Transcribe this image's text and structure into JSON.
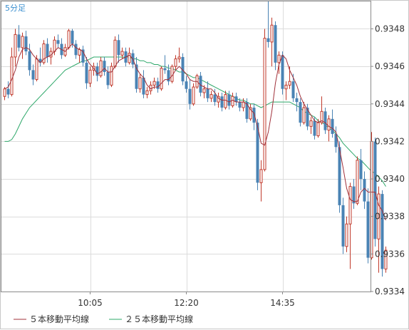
{
  "chart_data": {
    "type": "candlestick",
    "period_label": "5分足",
    "ylim": [
      0.9334,
      0.93495
    ],
    "y_ticks": [
      "0.9334",
      "0.9336",
      "0.9338",
      "0.9340",
      "0.9342",
      "0.9344",
      "0.9346",
      "0.9348"
    ],
    "x_ticks": [
      {
        "index": 24,
        "label": "10:05"
      },
      {
        "index": 51,
        "label": "12:20"
      },
      {
        "index": 78,
        "label": "14:35"
      }
    ],
    "colors": {
      "up": "#c0392b",
      "down": "#4a83b4",
      "ma5": "#a0303a",
      "ma25": "#2ea86a",
      "grid": "#dcdcdc",
      "frame": "#8a8a8a"
    },
    "legend": [
      {
        "name": "５本移動平均線",
        "color": "#a0303a"
      },
      {
        "name": "２５本移動平均線",
        "color": "#2ea86a"
      }
    ],
    "candles": [
      [
        0.93444,
        0.93449,
        0.93442,
        0.93448
      ],
      [
        0.93448,
        0.93452,
        0.93443,
        0.93445
      ],
      [
        0.93445,
        0.9347,
        0.93444,
        0.93465
      ],
      [
        0.93465,
        0.9348,
        0.9346,
        0.93477
      ],
      [
        0.93477,
        0.93482,
        0.93468,
        0.9347
      ],
      [
        0.9347,
        0.93478,
        0.93464,
        0.93476
      ],
      [
        0.93476,
        0.93479,
        0.93466,
        0.93468
      ],
      [
        0.93468,
        0.93472,
        0.93455,
        0.93458
      ],
      [
        0.93458,
        0.93461,
        0.9345,
        0.93453
      ],
      [
        0.93453,
        0.93466,
        0.93452,
        0.93464
      ],
      [
        0.93464,
        0.9347,
        0.9346,
        0.93462
      ],
      [
        0.93462,
        0.93474,
        0.93461,
        0.93472
      ],
      [
        0.93472,
        0.93475,
        0.93462,
        0.93465
      ],
      [
        0.93465,
        0.9347,
        0.93461,
        0.93468
      ],
      [
        0.93468,
        0.93476,
        0.93466,
        0.93474
      ],
      [
        0.93474,
        0.93477,
        0.9347,
        0.93472
      ],
      [
        0.93472,
        0.93475,
        0.93464,
        0.93466
      ],
      [
        0.93466,
        0.93472,
        0.93465,
        0.9347
      ],
      [
        0.9347,
        0.9348,
        0.93469,
        0.93479
      ],
      [
        0.93479,
        0.9348,
        0.9347,
        0.93472
      ],
      [
        0.93472,
        0.93474,
        0.93464,
        0.93466
      ],
      [
        0.93466,
        0.9347,
        0.93462,
        0.93469
      ],
      [
        0.93469,
        0.93471,
        0.9346,
        0.93462
      ],
      [
        0.93462,
        0.93465,
        0.93448,
        0.93451
      ],
      [
        0.93451,
        0.9346,
        0.93449,
        0.93458
      ],
      [
        0.93458,
        0.93462,
        0.93455,
        0.9346
      ],
      [
        0.9346,
        0.93462,
        0.93452,
        0.93455
      ],
      [
        0.93455,
        0.93465,
        0.93454,
        0.93463
      ],
      [
        0.93463,
        0.93465,
        0.93455,
        0.93457
      ],
      [
        0.93457,
        0.9346,
        0.93448,
        0.9345
      ],
      [
        0.9345,
        0.93462,
        0.93449,
        0.9346
      ],
      [
        0.9346,
        0.93476,
        0.93459,
        0.93474
      ],
      [
        0.93474,
        0.93477,
        0.93462,
        0.93466
      ],
      [
        0.93466,
        0.9347,
        0.93464,
        0.93468
      ],
      [
        0.93468,
        0.9347,
        0.9346,
        0.93462
      ],
      [
        0.93462,
        0.9347,
        0.93461,
        0.93467
      ],
      [
        0.93467,
        0.93469,
        0.93459,
        0.93461
      ],
      [
        0.93461,
        0.93465,
        0.93446,
        0.93448
      ],
      [
        0.93448,
        0.93456,
        0.93446,
        0.93454
      ],
      [
        0.93454,
        0.93458,
        0.93443,
        0.93445
      ],
      [
        0.93445,
        0.93449,
        0.93443,
        0.93447
      ],
      [
        0.93447,
        0.93452,
        0.93445,
        0.9345
      ],
      [
        0.9345,
        0.93454,
        0.93448,
        0.93452
      ],
      [
        0.93452,
        0.93454,
        0.93446,
        0.93448
      ],
      [
        0.93448,
        0.9346,
        0.93447,
        0.93459
      ],
      [
        0.93459,
        0.93466,
        0.93456,
        0.93458
      ],
      [
        0.93458,
        0.93461,
        0.9345,
        0.93452
      ],
      [
        0.93452,
        0.93461,
        0.93451,
        0.9346
      ],
      [
        0.9346,
        0.93466,
        0.93458,
        0.93464
      ],
      [
        0.93464,
        0.9347,
        0.93462,
        0.93465
      ],
      [
        0.93465,
        0.93467,
        0.9345,
        0.93452
      ],
      [
        0.93452,
        0.93455,
        0.93446,
        0.93448
      ],
      [
        0.93448,
        0.93453,
        0.93437,
        0.9344
      ],
      [
        0.9344,
        0.93451,
        0.93439,
        0.93449
      ],
      [
        0.93449,
        0.93456,
        0.93448,
        0.93455
      ],
      [
        0.93455,
        0.93457,
        0.93444,
        0.93446
      ],
      [
        0.93446,
        0.9345,
        0.93443,
        0.93448
      ],
      [
        0.93448,
        0.93452,
        0.93441,
        0.93443
      ],
      [
        0.93443,
        0.93447,
        0.93441,
        0.93445
      ],
      [
        0.93445,
        0.93448,
        0.93439,
        0.93441
      ],
      [
        0.93441,
        0.93446,
        0.93438,
        0.93444
      ],
      [
        0.93444,
        0.93446,
        0.93436,
        0.93438
      ],
      [
        0.93438,
        0.93447,
        0.93437,
        0.93445
      ],
      [
        0.93445,
        0.93447,
        0.93437,
        0.93439
      ],
      [
        0.93439,
        0.93446,
        0.93438,
        0.93444
      ],
      [
        0.93444,
        0.93446,
        0.93439,
        0.93441
      ],
      [
        0.93441,
        0.93443,
        0.93436,
        0.93438
      ],
      [
        0.93438,
        0.93443,
        0.93436,
        0.93441
      ],
      [
        0.93441,
        0.93443,
        0.9343,
        0.93432
      ],
      [
        0.93432,
        0.9344,
        0.93431,
        0.93438
      ],
      [
        0.93438,
        0.9344,
        0.93426,
        0.9343
      ],
      [
        0.9343,
        0.93432,
        0.93394,
        0.93398
      ],
      [
        0.93398,
        0.9341,
        0.93388,
        0.93405
      ],
      [
        0.93405,
        0.9348,
        0.93404,
        0.93475
      ],
      [
        0.93475,
        0.93495,
        0.9347,
        0.93473
      ],
      [
        0.93473,
        0.93486,
        0.9346,
        0.93482
      ],
      [
        0.93482,
        0.93484,
        0.93458,
        0.93462
      ],
      [
        0.93462,
        0.93468,
        0.93456,
        0.93466
      ],
      [
        0.93466,
        0.93468,
        0.93445,
        0.93448
      ],
      [
        0.93448,
        0.93452,
        0.93442,
        0.9345
      ],
      [
        0.9345,
        0.9346,
        0.93448,
        0.93452
      ],
      [
        0.93452,
        0.93456,
        0.93441,
        0.93443
      ],
      [
        0.93443,
        0.93446,
        0.93436,
        0.93441
      ],
      [
        0.93441,
        0.93443,
        0.93428,
        0.9343
      ],
      [
        0.9343,
        0.93441,
        0.93429,
        0.93438
      ],
      [
        0.93438,
        0.9344,
        0.93426,
        0.93428
      ],
      [
        0.93428,
        0.93433,
        0.93424,
        0.93431
      ],
      [
        0.93431,
        0.93433,
        0.93421,
        0.93423
      ],
      [
        0.93423,
        0.93432,
        0.93422,
        0.9343
      ],
      [
        0.9343,
        0.93444,
        0.93429,
        0.93436
      ],
      [
        0.93436,
        0.93438,
        0.93424,
        0.93426
      ],
      [
        0.93426,
        0.93434,
        0.9342,
        0.93432
      ],
      [
        0.93432,
        0.93437,
        0.93422,
        0.93424
      ],
      [
        0.93424,
        0.93428,
        0.93414,
        0.93417
      ],
      [
        0.93417,
        0.9342,
        0.93382,
        0.93386
      ],
      [
        0.93386,
        0.9339,
        0.9336,
        0.93364
      ],
      [
        0.93364,
        0.9338,
        0.93361,
        0.93376
      ],
      [
        0.93376,
        0.93398,
        0.93352,
        0.93396
      ],
      [
        0.93396,
        0.934,
        0.93384,
        0.93387
      ],
      [
        0.93387,
        0.93412,
        0.93386,
        0.9341
      ],
      [
        0.9341,
        0.93416,
        0.93394,
        0.934
      ],
      [
        0.934,
        0.93404,
        0.93384,
        0.93388
      ],
      [
        0.93388,
        0.93395,
        0.93355,
        0.93358
      ],
      [
        0.93358,
        0.93425,
        0.93357,
        0.9342
      ],
      [
        0.9342,
        0.93422,
        0.93364,
        0.93368
      ],
      [
        0.93368,
        0.93396,
        0.9335,
        0.93392
      ],
      [
        0.93392,
        0.93394,
        0.93348,
        0.93352
      ],
      [
        0.93352,
        0.93364,
        0.9335,
        0.93362
      ]
    ],
    "ma5": [
      0.93448,
      0.93449,
      0.93453,
      0.93458,
      0.93465,
      0.93469,
      0.9347,
      0.93469,
      0.93466,
      0.93464,
      0.93462,
      0.93464,
      0.93465,
      0.93466,
      0.93468,
      0.9347,
      0.93469,
      0.93468,
      0.9347,
      0.93472,
      0.9347,
      0.93469,
      0.93468,
      0.93464,
      0.93461,
      0.93459,
      0.93456,
      0.93457,
      0.93459,
      0.93457,
      0.93457,
      0.9346,
      0.93463,
      0.93464,
      0.93465,
      0.93466,
      0.93464,
      0.93459,
      0.93456,
      0.93454,
      0.9345,
      0.93448,
      0.93449,
      0.93449,
      0.93451,
      0.93453,
      0.93453,
      0.93455,
      0.93458,
      0.9346,
      0.93458,
      0.93456,
      0.93453,
      0.93452,
      0.93452,
      0.9345,
      0.93449,
      0.93448,
      0.93448,
      0.93446,
      0.93443,
      0.93442,
      0.93442,
      0.93441,
      0.93442,
      0.93441,
      0.93441,
      0.93441,
      0.9344,
      0.93437,
      0.93435,
      0.93428,
      0.93419,
      0.93418,
      0.93425,
      0.93436,
      0.93451,
      0.93461,
      0.93466,
      0.93464,
      0.93458,
      0.93454,
      0.9345,
      0.93444,
      0.9344,
      0.93437,
      0.93434,
      0.93431,
      0.9343,
      0.93431,
      0.9343,
      0.93428,
      0.93427,
      0.93425,
      0.93416,
      0.93406,
      0.93395,
      0.93389,
      0.93388,
      0.93388,
      0.93393,
      0.93395,
      0.93393,
      0.93393,
      0.93393,
      0.93386,
      0.93383,
      0.93378
    ],
    "ma25": [
      0.9342,
      0.9342,
      0.93421,
      0.93424,
      0.93428,
      0.93432,
      0.93435,
      0.93438,
      0.9344,
      0.93442,
      0.93444,
      0.93446,
      0.93448,
      0.9345,
      0.93452,
      0.93454,
      0.93456,
      0.93458,
      0.93459,
      0.9346,
      0.93461,
      0.93462,
      0.93463,
      0.93463,
      0.93464,
      0.93465,
      0.93465,
      0.93465,
      0.93465,
      0.93465,
      0.93465,
      0.93465,
      0.93465,
      0.93465,
      0.93465,
      0.93465,
      0.93464,
      0.93464,
      0.93463,
      0.93463,
      0.93462,
      0.93462,
      0.93461,
      0.93461,
      0.9346,
      0.9346,
      0.93459,
      0.93459,
      0.93458,
      0.93457,
      0.93457,
      0.93456,
      0.93455,
      0.93454,
      0.93454,
      0.93453,
      0.93452,
      0.93451,
      0.9345,
      0.93449,
      0.93448,
      0.93447,
      0.93446,
      0.93445,
      0.93444,
      0.93443,
      0.93442,
      0.93442,
      0.93441,
      0.9344,
      0.9344,
      0.93439,
      0.93438,
      0.93439,
      0.9344,
      0.93441,
      0.93441,
      0.93441,
      0.93441,
      0.93441,
      0.93441,
      0.9344,
      0.93439,
      0.93438,
      0.93436,
      0.93435,
      0.93434,
      0.93433,
      0.93431,
      0.9343,
      0.93429,
      0.93427,
      0.93426,
      0.93424,
      0.93422,
      0.93419,
      0.93417,
      0.93415,
      0.93413,
      0.93411,
      0.9341,
      0.93408,
      0.93406,
      0.93404,
      0.93403,
      0.93401,
      0.93399,
      0.93396
    ]
  }
}
